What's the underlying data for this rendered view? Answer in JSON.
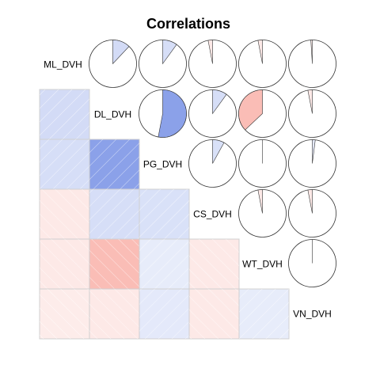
{
  "chart_data": {
    "type": "heatmap",
    "title": "Correlations",
    "variables": [
      "ML_DVH",
      "DL_DVH",
      "PG_DVH",
      "CS_DVH",
      "WT_DVH",
      "VN_DVH"
    ],
    "correlations": [
      [
        1.0,
        0.12,
        0.1,
        -0.03,
        -0.03,
        -0.01
      ],
      [
        0.12,
        1.0,
        0.53,
        0.1,
        -0.37,
        -0.03
      ],
      [
        0.1,
        0.53,
        1.0,
        0.08,
        0.0,
        0.02
      ],
      [
        -0.03,
        0.1,
        0.08,
        1.0,
        -0.03,
        -0.03
      ],
      [
        -0.03,
        -0.37,
        0.0,
        -0.03,
        1.0,
        0.0
      ],
      [
        -0.01,
        -0.03,
        0.02,
        -0.03,
        0.0,
        1.0
      ]
    ],
    "lower_panel": "shade",
    "upper_panel": "pie",
    "diagonal": "variable names",
    "colors": {
      "positive": "#3a5fd9",
      "negative": "#f36b5b",
      "cell_border": "#d0d0d0"
    }
  }
}
